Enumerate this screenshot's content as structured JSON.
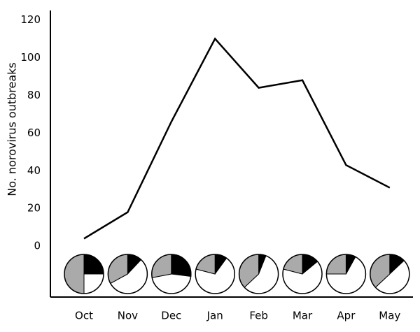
{
  "chart_data": {
    "type": "line",
    "y_label": "No. norovirus outbreaks",
    "categories": [
      "Oct",
      "Nov",
      "Dec",
      "Jan",
      "Feb",
      "Mar",
      "Apr",
      "May"
    ],
    "values": [
      4,
      18,
      66,
      110,
      84,
      88,
      43,
      31
    ],
    "color": "#000000",
    "ylim": [
      -27,
      125
    ],
    "yticks": [
      0,
      20,
      40,
      60,
      80,
      100,
      120
    ],
    "grid": false,
    "pies": {
      "colors": [
        "#000000",
        "#ffffff",
        "#aaaaaa"
      ],
      "values": [
        [
          25,
          25,
          50
        ],
        [
          12,
          55,
          33
        ],
        [
          27,
          45,
          28
        ],
        [
          10,
          69,
          21
        ],
        [
          6,
          57,
          37
        ],
        [
          14,
          65,
          21
        ],
        [
          8,
          67,
          25
        ],
        [
          13,
          50,
          37
        ]
      ]
    }
  }
}
